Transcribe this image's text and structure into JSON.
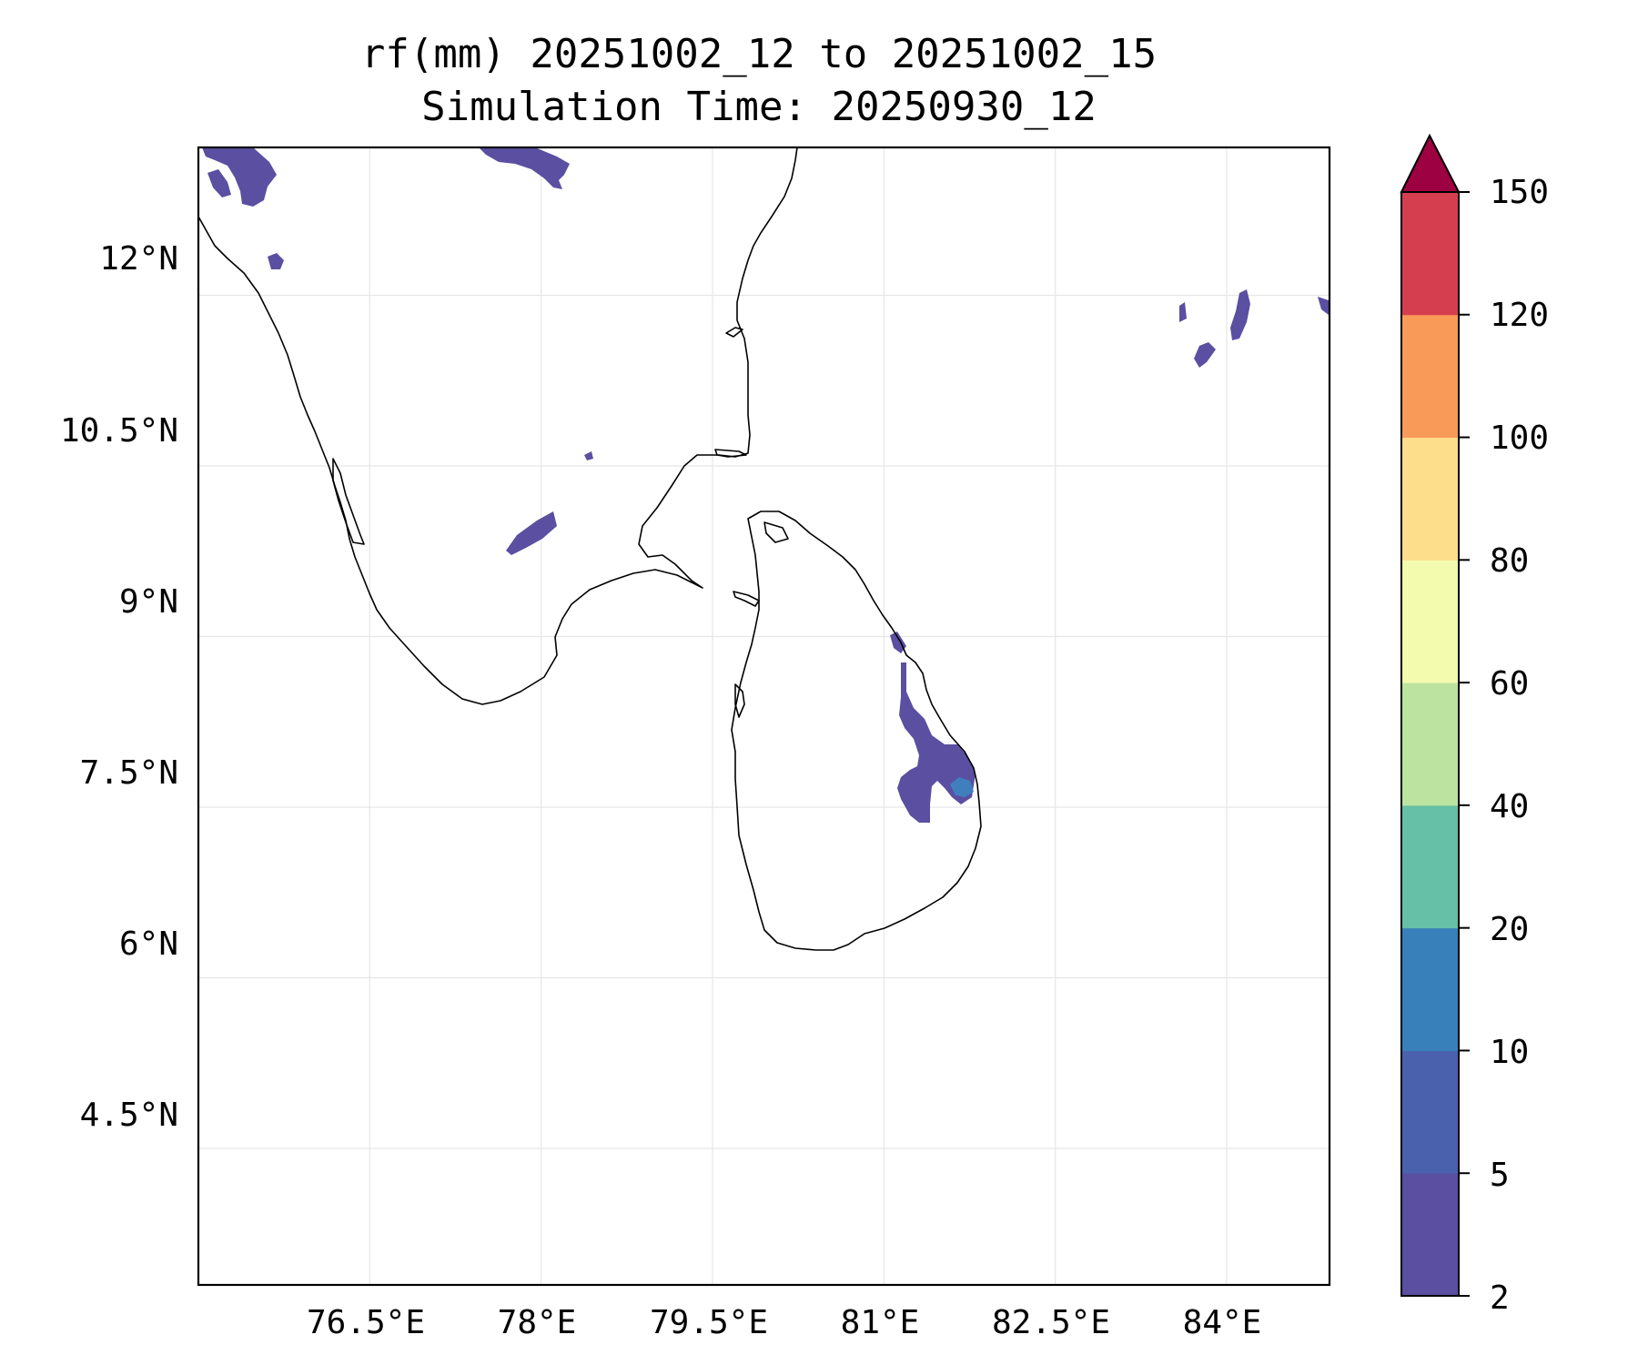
{
  "title": {
    "line1": "rf(mm) 20251002_12 to 20251002_15",
    "line2": "Simulation Time: 20250930_12"
  },
  "axes": {
    "x_ticks": [
      "76.5°E",
      "78°E",
      "79.5°E",
      "81°E",
      "82.5°E",
      "84°E"
    ],
    "y_ticks": [
      "12°N",
      "10.5°N",
      "9°N",
      "7.5°N",
      "6°N",
      "4.5°N"
    ],
    "x_values": [
      76.5,
      78,
      79.5,
      81,
      82.5,
      84
    ],
    "y_values": [
      12,
      10.5,
      9,
      7.5,
      6,
      4.5
    ],
    "lon_range": [
      75.0,
      84.9
    ],
    "lat_range": [
      3.3,
      13.3
    ]
  },
  "colorbar": {
    "levels": [
      "2",
      "5",
      "10",
      "20",
      "40",
      "60",
      "80",
      "100",
      "120",
      "150"
    ],
    "colors": [
      "#5a4fa1",
      "#4a62ad",
      "#3880ba",
      "#66bfa7",
      "#bde3a1",
      "#f3fbaf",
      "#fcde8b",
      "#f99a58",
      "#d53e4f"
    ],
    "extend_color": "#9e0142"
  }
}
